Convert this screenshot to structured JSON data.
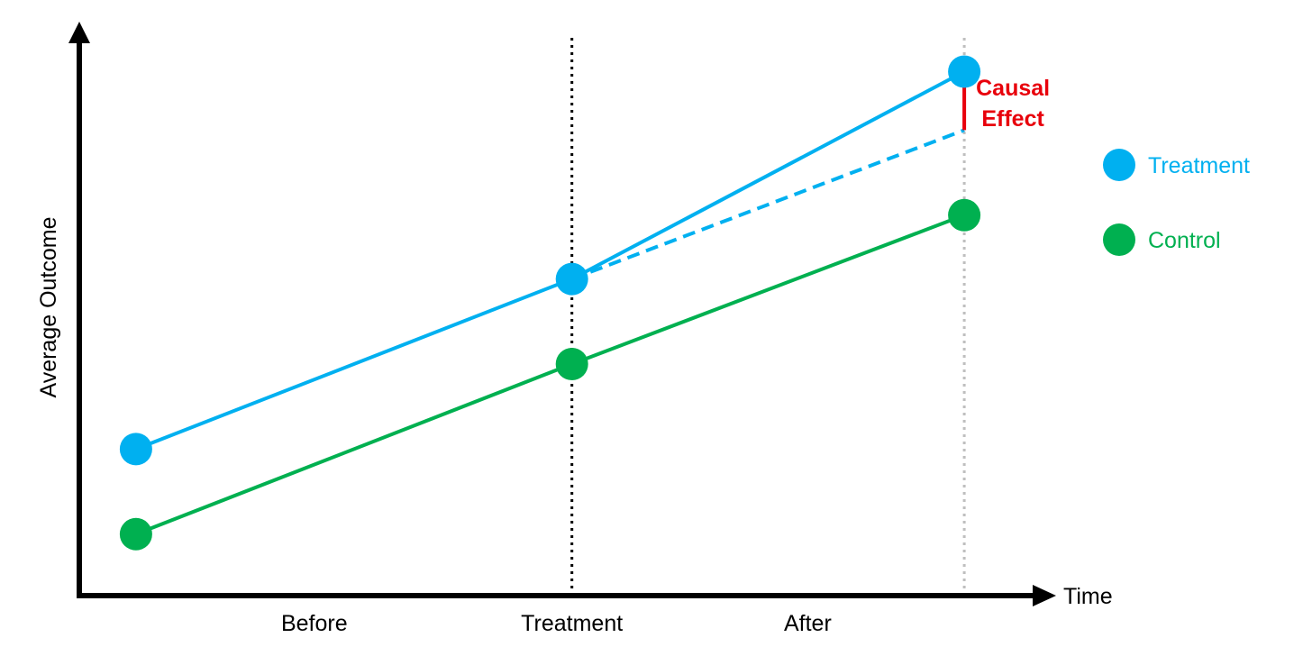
{
  "chart_data": {
    "type": "line",
    "title": "",
    "xlabel": "Time",
    "ylabel": "Average Outcome",
    "x_categories": [
      "Before",
      "Treatment",
      "After"
    ],
    "x_points": [
      0,
      1,
      1.9
    ],
    "xlim": [
      -0.13,
      2.4
    ],
    "ylim": [
      0,
      10
    ],
    "treatment_time": 1,
    "series": [
      {
        "name": "Treatment",
        "color": "#00B0F0",
        "x": [
          0,
          1,
          1.9
        ],
        "values": [
          2.4,
          5.6,
          9.5
        ]
      },
      {
        "name": "Control",
        "color": "#00B050",
        "x": [
          0,
          1,
          1.9
        ],
        "values": [
          0.8,
          4.0,
          6.8
        ]
      }
    ],
    "counterfactual": {
      "name": "Treatment counterfactual",
      "color": "#00B0F0",
      "x": [
        1,
        1.9
      ],
      "values": [
        5.6,
        8.4
      ],
      "style": "dashed"
    },
    "effect": {
      "line1": "Causal",
      "line2": "Effect",
      "color": "#E8000B",
      "x": 1.9,
      "from": 8.4,
      "to": 9.5
    },
    "legend": [
      {
        "label": "Treatment",
        "color": "#00B0F0"
      },
      {
        "label": "Control",
        "color": "#00B050"
      }
    ],
    "legend_position": "right",
    "grid": false
  }
}
